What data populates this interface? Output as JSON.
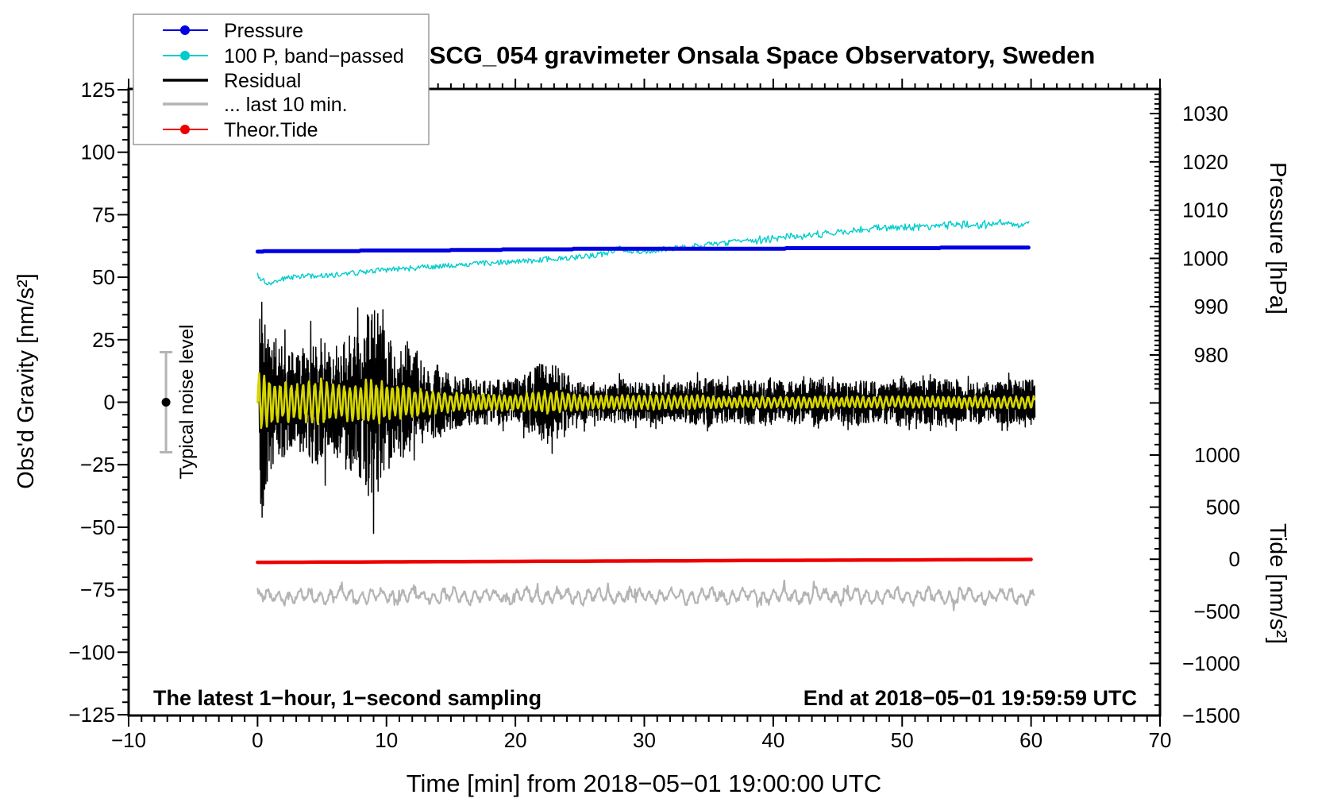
{
  "title": "SCG_054 gravimeter Onsala Space Observatory, Sweden",
  "annotations": {
    "sampling": "The latest 1−hour, 1−second sampling",
    "end_time": "End at 2018−05−01 19:59:59 UTC"
  },
  "noise_marker": {
    "label": "Typical noise level",
    "center_value": 0,
    "half_range": 20,
    "x_position_min": -7.1,
    "bar_color": "#b4b4b4",
    "dot_color": "#000000"
  },
  "legend": {
    "entries": [
      {
        "label": "Pressure",
        "color": "#0000e0",
        "marker": "dot-line"
      },
      {
        "label": "100 P, band−passed",
        "color": "#00cccc",
        "marker": "dot-line"
      },
      {
        "label": "Residual",
        "color": "#000000",
        "marker": "line"
      },
      {
        "label": "... last 10 min.",
        "color": "#b4b4b4",
        "marker": "line"
      },
      {
        "label": "Theor.Tide",
        "color": "#ee0000",
        "marker": "dot-line"
      }
    ]
  },
  "axes": {
    "x": {
      "label": "Time [min] from 2018−05−01 19:00:00 UTC",
      "min": -10,
      "max": 70,
      "major_step": 10,
      "minor_step": 1,
      "major_ticks": [
        -10,
        0,
        10,
        20,
        30,
        40,
        50,
        60,
        70
      ],
      "tick_labels": [
        "−10",
        "0",
        "10",
        "20",
        "30",
        "40",
        "50",
        "60",
        "70"
      ]
    },
    "y_left": {
      "label": "Obs'd Gravity [nm/s²]",
      "min": -125,
      "max": 125,
      "major_step": 25,
      "minor_step": 5,
      "major_ticks": [
        125,
        100,
        75,
        50,
        25,
        0,
        -25,
        -50,
        -75,
        -100,
        -125
      ],
      "tick_labels": [
        "125",
        "100",
        "75",
        "50",
        "25",
        "0",
        "−25",
        "−50",
        "−75",
        "−100",
        "−125"
      ]
    },
    "y_right_pressure": {
      "label": "Pressure [hPa]",
      "major_step": 10,
      "minor_step": 1,
      "major_ticks": [
        1030,
        1020,
        1010,
        1000,
        990,
        980
      ],
      "tick_labels": [
        "1030",
        "1020",
        "1010",
        "1000",
        "990",
        "980"
      ]
    },
    "y_right_tide": {
      "label": "Tide [nm/s²]",
      "major_step": 500,
      "minor_step": 100,
      "major_ticks": [
        1000,
        500,
        0,
        -500,
        -1000,
        -1500
      ],
      "tick_labels": [
        "1000",
        "500",
        "0",
        "−500",
        "−1000",
        "−1500"
      ]
    }
  },
  "chart_data": {
    "type": "line",
    "x_unit": "minutes",
    "x_range": [
      0,
      60.3
    ],
    "grid": false,
    "legend_position": "top-left",
    "series": [
      {
        "name": "Pressure",
        "axis": "pressure_hPa",
        "color": "#0000e0",
        "line_width": 5,
        "x": [
          0,
          5,
          10,
          15,
          20,
          25,
          30,
          35,
          40,
          45,
          50,
          55,
          60
        ],
        "values": [
          1001.45,
          1001.55,
          1001.6,
          1001.7,
          1001.85,
          1001.95,
          1002.0,
          1002.0,
          1002.05,
          1002.1,
          1002.15,
          1002.2,
          1002.25
        ]
      },
      {
        "name": "100 P, band−passed",
        "axis": "gravity_nms2",
        "color": "#00cccc",
        "line_width": 1.4,
        "x_step_min": 1,
        "noise_amplitude": 1.1,
        "values": [
          50.5,
          47,
          49.5,
          50,
          50.5,
          50.5,
          51,
          51.5,
          52,
          52.5,
          53,
          53.5,
          53.5,
          54,
          54.5,
          54.5,
          55,
          55.5,
          55.5,
          56,
          56.5,
          56.5,
          57,
          57.5,
          57.5,
          58,
          58.5,
          59.5,
          61.5,
          60.5,
          60.5,
          61,
          61.5,
          62,
          62.5,
          63,
          63.5,
          64,
          64.5,
          65,
          65.5,
          66,
          66.5,
          67,
          67.5,
          68,
          68.5,
          69,
          69.5,
          69.5,
          70,
          70,
          70.5,
          70.5,
          71,
          71,
          71,
          71.5,
          71.5,
          71,
          71.5
        ]
      },
      {
        "name": "Residual",
        "axis": "gravity_nms2",
        "color": "#000000",
        "line_width": 1.5,
        "mean": 0,
        "x_step_min": 1,
        "envelope": [
          45,
          28,
          22,
          20,
          24,
          26,
          22,
          26,
          32,
          42,
          26,
          22,
          26,
          14,
          15,
          11,
          10,
          9,
          9,
          9,
          10,
          12,
          16,
          16,
          11,
          9,
          8,
          8,
          9,
          8,
          8,
          9,
          8,
          8,
          9,
          10,
          8,
          8,
          9,
          9,
          10,
          8,
          9,
          10,
          8,
          8,
          9,
          9,
          8,
          9,
          10,
          8,
          9,
          10,
          9,
          8,
          9,
          8,
          9,
          9,
          9
        ],
        "extremes": {
          "max": 40,
          "min": -46,
          "at_min": 0.35
        }
      },
      {
        "name": "band-passed residual (yellow, unlabeled)",
        "axis": "gravity_nms2",
        "color": "#d6d600",
        "line_width": 2.6,
        "mean": 0,
        "x_step_min": 1,
        "envelope": [
          13,
          11,
          9,
          8,
          9,
          10,
          8,
          8,
          9,
          10,
          8,
          7,
          7,
          5,
          5,
          4,
          4,
          3.5,
          3.5,
          3.5,
          3.5,
          4,
          5,
          5,
          4,
          3.5,
          3,
          3,
          3,
          3,
          3,
          3,
          3,
          3,
          3,
          3,
          2.5,
          2.5,
          2.5,
          2.5,
          2.5,
          2.5,
          2.5,
          2.5,
          2.5,
          2.5,
          2.5,
          2.5,
          2.5,
          2.5,
          2.5,
          2.5,
          2.5,
          2.5,
          2.5,
          2.5,
          2.5,
          2.5,
          2.5,
          2.5,
          2.5
        ]
      },
      {
        "name": "... last 10 min.",
        "axis": "gravity_nms2",
        "color": "#b4b4b4",
        "line_width": 2.2,
        "baseline": -77.5,
        "amplitude": 3.5
      },
      {
        "name": "Theor.Tide",
        "axis": "tide_nms2",
        "color": "#ee0000",
        "line_width": 4.5,
        "x": [
          0,
          10,
          20,
          30,
          40,
          50,
          60
        ],
        "values": [
          -30,
          -25.5,
          -21,
          -16.5,
          -11.5,
          -7,
          -2.5
        ]
      }
    ]
  }
}
